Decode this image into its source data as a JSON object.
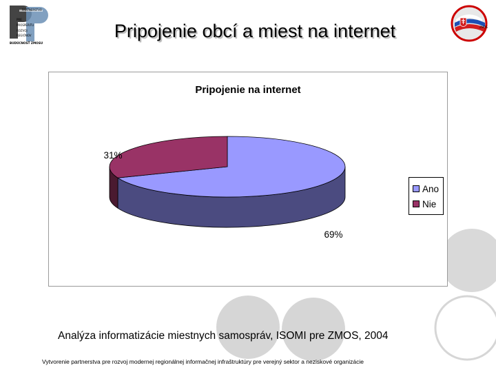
{
  "slide": {
    "title": "Pripojenie obcí a miest na internet",
    "source_text": "Analýza informatizácie miestnych samospráv, ISOMI pre ZMOS, 2004",
    "footer_text": "Vytvorenie partnerstva pre rozvoj modernej regionálnej informačnej infraštruktúry pre verejný sektor a neziskové organizácie"
  },
  "logos": {
    "left_text": [
      "PARTNERSTVO",
      "PRE",
      "PROSPERITU",
      "ROZVOJ",
      "REGIÓNOV"
    ],
    "left_footer": "BUDÚCNOSŤ ZMOSU",
    "right_text": "ZMOS"
  },
  "chart_data": {
    "type": "pie",
    "title": "Pripojenie na internet",
    "categories": [
      "Ano",
      "Nie"
    ],
    "values": [
      69,
      31
    ],
    "labels": [
      "69%",
      "31%"
    ],
    "colors": [
      "#9999ff",
      "#993366"
    ],
    "side_colors": [
      "#4b4b80",
      "#4a1a30"
    ],
    "legend_position": "right",
    "style": "3d"
  },
  "colors": {
    "deco_circle": "#dcdcdc"
  }
}
